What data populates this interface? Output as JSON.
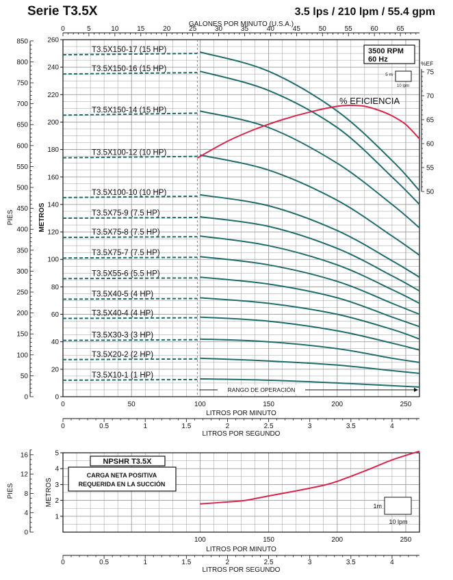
{
  "header": {
    "title": "Serie T3.5X",
    "rating": "3.5 lps / 210 lpm / 55.4 gpm"
  },
  "colors": {
    "curve": "#1f6b6b",
    "efficiency": "#d8234a",
    "grid": "#9a9a9a",
    "axis": "#111111"
  },
  "chart_data": [
    {
      "type": "line",
      "title": "",
      "xlabel": "LITROS POR MINUTO",
      "xlabel_lps": "LITROS POR SEGUNDO",
      "xlabel_gpm": "GALONES POR MINUTO (U.S.A.)",
      "ylabel": "METROS",
      "ylabel_ft": "PIES",
      "xlim": [
        0,
        260
      ],
      "ylim": [
        0,
        260
      ],
      "x_ticks": [
        "0",
        "50",
        "100",
        "150",
        "200",
        "250"
      ],
      "lps_ticks": [
        "0",
        "0.5",
        "1",
        "1.5",
        "2",
        "2.5",
        "3",
        "3.5",
        "4"
      ],
      "gpm_ticks": [
        "0",
        "5",
        "10",
        "15",
        "20",
        "25",
        "30",
        "35",
        "40",
        "45",
        "50",
        "55",
        "60",
        "65"
      ],
      "y_ticks": [
        "0",
        "20",
        "40",
        "60",
        "80",
        "100",
        "120",
        "140",
        "160",
        "180",
        "200",
        "220",
        "240",
        "260"
      ],
      "ft_ticks": [
        "0",
        "50",
        "100",
        "150",
        "200",
        "250",
        "300",
        "350",
        "400",
        "450",
        "500",
        "550",
        "600",
        "650",
        "700",
        "750",
        "800",
        "850"
      ],
      "eff_label": "%EF",
      "eff_ticks": [
        "50",
        "55",
        "60",
        "65",
        "70",
        "75"
      ],
      "eff_range": [
        50,
        75
      ],
      "speed_label": "3500 RPM",
      "freq_label": "60 Hz",
      "scale_box": {
        "v": "5 m",
        "h": "10 lpm"
      },
      "operating_range": {
        "label": "RANGO DE OPERACIÓN",
        "from": 98,
        "to": 260
      },
      "series": [
        {
          "name": "T3.5X150-17  (15 HP)",
          "shutoff": 249,
          "points": [
            [
              100,
              251
            ],
            [
              150,
              237
            ],
            [
              200,
              208
            ],
            [
              240,
              172
            ],
            [
              260,
              150
            ]
          ]
        },
        {
          "name": "T3.5X150-16  (15 HP)",
          "shutoff": 235,
          "points": [
            [
              100,
              237
            ],
            [
              150,
              223
            ],
            [
              200,
              196
            ],
            [
              240,
              160
            ],
            [
              260,
              140
            ]
          ]
        },
        {
          "name": "T3.5X150-14  (15 HP)",
          "shutoff": 205,
          "points": [
            [
              100,
              208
            ],
            [
              150,
              196
            ],
            [
              200,
              170
            ],
            [
              240,
              140
            ],
            [
              260,
              123
            ]
          ]
        },
        {
          "name": "T3.5X100-12  (10 HP)",
          "shutoff": 174,
          "points": [
            [
              100,
              176
            ],
            [
              150,
              165
            ],
            [
              200,
              143
            ],
            [
              240,
              117
            ],
            [
              260,
              103
            ]
          ]
        },
        {
          "name": "T3.5X100-10  (10 HP)",
          "shutoff": 145,
          "points": [
            [
              100,
              147
            ],
            [
              150,
              139
            ],
            [
              200,
              121
            ],
            [
              240,
              99
            ],
            [
              260,
              87
            ]
          ]
        },
        {
          "name": "T3.5X75-9  (7.5 HP)",
          "shutoff": 130,
          "points": [
            [
              100,
              131
            ],
            [
              150,
              124
            ],
            [
              200,
              108
            ],
            [
              240,
              88
            ],
            [
              260,
              77
            ]
          ]
        },
        {
          "name": "T3.5X75-8  (7.5 HP)",
          "shutoff": 116,
          "points": [
            [
              100,
              117
            ],
            [
              150,
              110
            ],
            [
              200,
              96
            ],
            [
              240,
              78
            ],
            [
              260,
              68
            ]
          ]
        },
        {
          "name": "T3.5X75-7  (7.5 HP)",
          "shutoff": 101,
          "points": [
            [
              100,
              102
            ],
            [
              150,
              96
            ],
            [
              200,
              84
            ],
            [
              240,
              68
            ],
            [
              260,
              60
            ]
          ]
        },
        {
          "name": "T3.5X55-6  (5.5 HP)",
          "shutoff": 86,
          "points": [
            [
              100,
              87
            ],
            [
              150,
              82
            ],
            [
              200,
              72
            ],
            [
              240,
              58
            ],
            [
              260,
              51
            ]
          ]
        },
        {
          "name": "T3.5X40-5  (4 HP)",
          "shutoff": 71,
          "points": [
            [
              100,
              72
            ],
            [
              150,
              68
            ],
            [
              200,
              60
            ],
            [
              240,
              49
            ],
            [
              260,
              42
            ]
          ]
        },
        {
          "name": "T3.5X40-4  (4 HP)",
          "shutoff": 57,
          "points": [
            [
              100,
              58
            ],
            [
              150,
              55
            ],
            [
              200,
              48
            ],
            [
              240,
              39
            ],
            [
              260,
              34
            ]
          ]
        },
        {
          "name": "T3.5X30-3  (3 HP)",
          "shutoff": 41,
          "points": [
            [
              100,
              42
            ],
            [
              150,
              40
            ],
            [
              200,
              35
            ],
            [
              240,
              28
            ],
            [
              260,
              25
            ]
          ]
        },
        {
          "name": "T3.5X20-2  (2 HP)",
          "shutoff": 27,
          "points": [
            [
              100,
              28
            ],
            [
              150,
              26
            ],
            [
              200,
              23
            ],
            [
              240,
              19
            ],
            [
              260,
              17
            ]
          ]
        },
        {
          "name": "T3.5X10-1  (1 HP)",
          "shutoff": 12,
          "points": [
            [
              100,
              13
            ],
            [
              150,
              12
            ],
            [
              200,
              10
            ],
            [
              240,
              8
            ],
            [
              260,
              7
            ]
          ]
        }
      ],
      "efficiency": {
        "label": "% EFICIENCIA",
        "points": [
          [
            98,
            57
          ],
          [
            120,
            60.5
          ],
          [
            140,
            63
          ],
          [
            160,
            65
          ],
          [
            180,
            66.6
          ],
          [
            200,
            67.8
          ],
          [
            210,
            68
          ],
          [
            220,
            67.8
          ],
          [
            230,
            67
          ],
          [
            240,
            65.8
          ],
          [
            250,
            64
          ],
          [
            260,
            61
          ]
        ]
      }
    },
    {
      "type": "line",
      "title": "NPSHR T3.5X",
      "subtitle": "CARGA NETA POSITIVA\nREQUERIDA EN LA SUCCIÓN",
      "xlabel": "LITROS POR MINUTO",
      "xlabel_lps": "LITROS POR SEGUNDO",
      "ylabel": "METROS",
      "ylabel_ft": "PIES",
      "xlim": [
        0,
        260
      ],
      "ylim": [
        0,
        5
      ],
      "x_ticks": [
        "100",
        "150",
        "200",
        "250"
      ],
      "lps_ticks": [
        "0",
        "0.5",
        "1",
        "1.5",
        "2",
        "2.5",
        "3",
        "3.5",
        "4"
      ],
      "y_ticks": [
        "1",
        "2",
        "3",
        "4",
        "5"
      ],
      "ft_ticks": [
        "0",
        "4",
        "8",
        "12",
        "16"
      ],
      "scale_box": {
        "v": "1m",
        "h": "10 lpm"
      },
      "series": [
        {
          "points": [
            [
              100,
              1.78
            ],
            [
              120,
              1.9
            ],
            [
              133,
              2.0
            ],
            [
              150,
              2.28
            ],
            [
              170,
              2.6
            ],
            [
              190,
              2.95
            ],
            [
              200,
              3.2
            ],
            [
              220,
              3.85
            ],
            [
              240,
              4.55
            ],
            [
              260,
              5.1
            ]
          ]
        }
      ]
    }
  ]
}
